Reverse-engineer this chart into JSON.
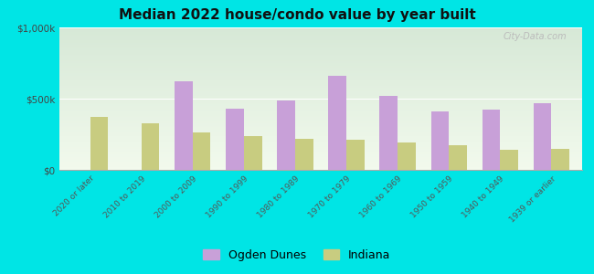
{
  "title": "Median 2022 house/condo value by year built",
  "categories": [
    "2020 or later",
    "2010 to 2019",
    "2000 to 2009",
    "1990 to 1999",
    "1980 to 1989",
    "1970 to 1979",
    "1960 to 1969",
    "1950 to 1959",
    "1940 to 1949",
    "1939 or earlier"
  ],
  "ogden_dunes": [
    0,
    0,
    620000,
    430000,
    490000,
    660000,
    520000,
    410000,
    420000,
    470000
  ],
  "indiana": [
    370000,
    330000,
    260000,
    240000,
    220000,
    210000,
    190000,
    170000,
    140000,
    150000
  ],
  "ogden_color": "#c8a0d8",
  "indiana_color": "#c8cc80",
  "background_color": "#00e5e5",
  "ylim": [
    0,
    1000000
  ],
  "yticks": [
    0,
    500000,
    1000000
  ],
  "ytick_labels": [
    "$0",
    "$500k",
    "$1,000k"
  ],
  "legend_ogden": "Ogden Dunes",
  "legend_indiana": "Indiana",
  "bar_width": 0.35,
  "watermark": "City-Data.com"
}
